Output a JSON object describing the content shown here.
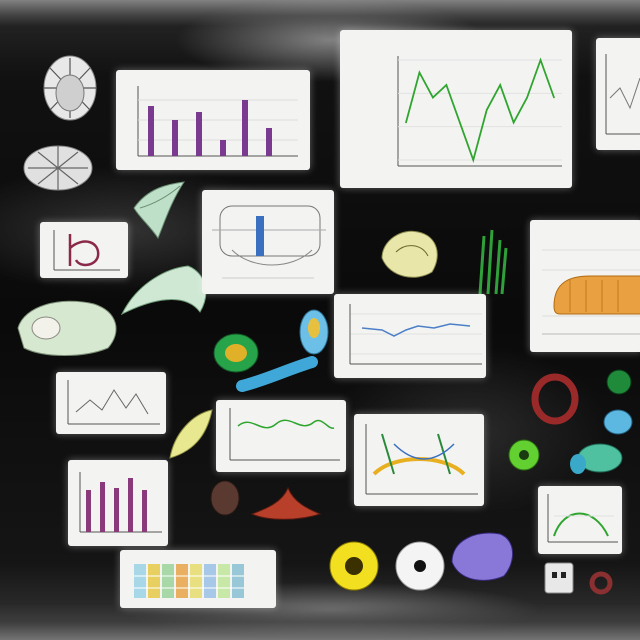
{
  "scene": {
    "colors": {
      "background": "#0b0b0b",
      "card": "#f3f3f1",
      "green_line": "#2fa52f",
      "purple_bar": "#7a3a8f",
      "orange_fill": "#e8a040",
      "blue_line": "#4b7fc8"
    }
  },
  "cards": {
    "large_line_chart": {
      "title": "",
      "ylabel": ""
    }
  },
  "chart_data": [
    {
      "type": "line",
      "note_ref": "large_line_chart",
      "title": "",
      "x": [
        0,
        1,
        2,
        3,
        4,
        5,
        6,
        7,
        8,
        9,
        10,
        11
      ],
      "series": [
        {
          "values": [
            3,
            7,
            5,
            6,
            3,
            0,
            4,
            6,
            3,
            5,
            8,
            5
          ]
        }
      ]
    }
  ],
  "objects": [
    {
      "name": "white-chrysanthemum"
    },
    {
      "name": "white-flower-small"
    },
    {
      "name": "green-leaf-bundle"
    },
    {
      "name": "pale-cabbage"
    },
    {
      "name": "yellow-green-flower"
    },
    {
      "name": "green-grass-tuft"
    },
    {
      "name": "blue-tube"
    },
    {
      "name": "red-ring"
    },
    {
      "name": "green-bead"
    },
    {
      "name": "yellow-sunflower"
    },
    {
      "name": "white-button-disc"
    },
    {
      "name": "purple-gem"
    },
    {
      "name": "red-fin-creature"
    },
    {
      "name": "brown-seed"
    }
  ]
}
